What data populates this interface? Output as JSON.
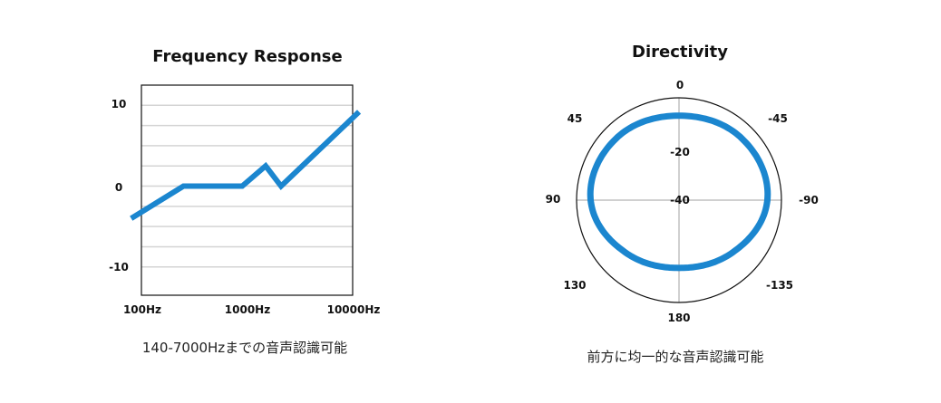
{
  "colors": {
    "line": "#1b86cf",
    "grid": "#d4d4d4",
    "frame": "#111111"
  },
  "chart_data": [
    {
      "type": "line",
      "title": "Frequency Response",
      "caption": "140-7000Hzまでの音声認識可能",
      "x_scale": "log",
      "xlim": [
        100,
        10000
      ],
      "ylim": [
        -13.5,
        12.5
      ],
      "x_ticks": [
        {
          "value": 100,
          "label": "100Hz"
        },
        {
          "value": 1000,
          "label": "1000Hz"
        },
        {
          "value": 10000,
          "label": "10000Hz"
        }
      ],
      "y_ticks": [
        {
          "value": 10,
          "label": "10"
        },
        {
          "value": 0,
          "label": "0"
        },
        {
          "value": -10,
          "label": "-10"
        }
      ],
      "gridlines_y": [
        10,
        7.5,
        5,
        2.5,
        0,
        -2.5,
        -5,
        -7.5,
        -10
      ],
      "grid": true,
      "series": [
        {
          "x": [
            80,
            250,
            900,
            1500,
            2100,
            11500
          ],
          "y": [
            -4,
            0,
            0,
            2.5,
            0,
            9.2
          ]
        }
      ]
    },
    {
      "type": "polar",
      "title": "Directivity",
      "caption": "前方に均一的な音声認識可能",
      "rlim": [
        -40,
        0
      ],
      "angle_labels": [
        {
          "angle": 0,
          "label": "0"
        },
        {
          "angle": 45,
          "label": "45"
        },
        {
          "angle": -45,
          "label": "-45"
        },
        {
          "angle": 90,
          "label": "90"
        },
        {
          "angle": -90,
          "label": "-90"
        },
        {
          "angle": 130,
          "label": "130"
        },
        {
          "angle": -135,
          "label": "-135"
        },
        {
          "angle": 180,
          "label": "180"
        }
      ],
      "radial_labels": [
        {
          "value": -20,
          "label": "-20"
        },
        {
          "value": -40,
          "label": "-40"
        }
      ],
      "series": [
        {
          "angle": [
            0,
            45,
            90,
            135,
            180,
            -135,
            -90,
            -45
          ],
          "r": [
            -7,
            -5.6,
            -5.5,
            -10.8,
            -13.5,
            -10.8,
            -5.5,
            -5.6
          ]
        }
      ]
    }
  ]
}
